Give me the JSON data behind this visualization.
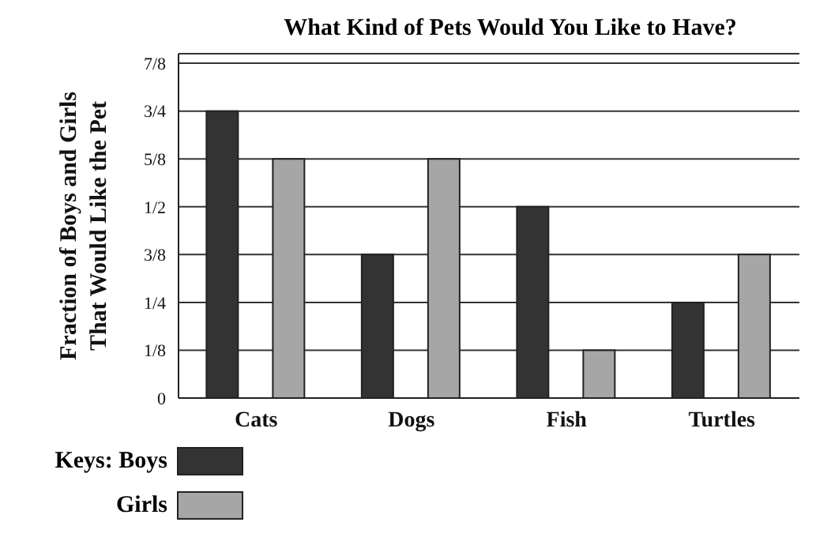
{
  "chart_data": {
    "type": "bar",
    "title": "What Kind of Pets Would You Like to Have?",
    "ylabel": "Fraction of Boys and Girls\nThat Would Like the Pet",
    "categories": [
      "Cats",
      "Dogs",
      "Fish",
      "Turtles"
    ],
    "series": [
      {
        "name": "Boys",
        "color": "#333333",
        "values": [
          0.75,
          0.375,
          0.5,
          0.25
        ]
      },
      {
        "name": "Girls",
        "color": "#a6a6a6",
        "values": [
          0.625,
          0.625,
          0.125,
          0.375
        ]
      }
    ],
    "ylim": [
      0,
      0.9
    ],
    "yticks": [
      0,
      {
        "value": 0.125,
        "label": "1/8"
      },
      {
        "value": 0.25,
        "label": "1/4"
      },
      {
        "value": 0.375,
        "label": "3/8"
      },
      {
        "value": 0.5,
        "label": "1/2"
      },
      {
        "value": 0.625,
        "label": "5/8"
      },
      {
        "value": 0.75,
        "label": "3/4"
      },
      {
        "value": 0.875,
        "label": "7/8"
      }
    ],
    "grid": "y",
    "legend": "bottom left",
    "legend_title": "Keys:"
  }
}
